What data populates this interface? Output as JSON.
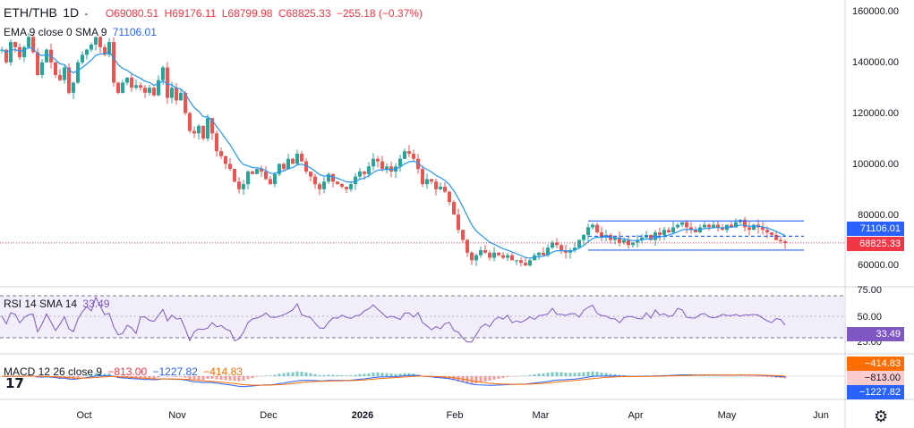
{
  "header": {
    "symbol": "ETH/THB",
    "interval": "1D",
    "dash": "-",
    "open": "O69080.51",
    "high": "H69176.11",
    "low": "L68799.98",
    "close": "C68825.33",
    "change": "−255.18 (−0.37%)"
  },
  "ema_legend": {
    "label": "EMA 9 close 0 SMA 9",
    "value": "71106.01"
  },
  "rsi_legend": {
    "label": "RSI 14 SMA 14",
    "value": "33.49"
  },
  "macd_legend": {
    "label": "MACD 12 26 close 9",
    "v1": "−813.00",
    "v2": "−1227.82",
    "v3": "−414.83"
  },
  "price_axis": {
    "ticks": [
      "160000.00",
      "140000.00",
      "120000.00",
      "100000.00",
      "80000.00",
      "60000.00"
    ],
    "ema_tag": "71106.01",
    "price_tag": "68825.33"
  },
  "rsi_axis": {
    "ticks": [
      "75.00",
      "50.00",
      "25.00"
    ],
    "tag": "33.49"
  },
  "macd_axis": {
    "tags": [
      "−414.83",
      "−813.00",
      "−1227.82"
    ]
  },
  "time_axis": [
    "Oct",
    "Nov",
    "Dec",
    "2026",
    "Feb",
    "Mar",
    "Apr",
    "May",
    "Jun"
  ],
  "colors": {
    "up": "#26a69a",
    "down": "#ef5350",
    "ema": "#2196f3",
    "rsi": "#7e57c2",
    "macd": "#2962ff",
    "signal": "#ff6d00",
    "price_tag": "#f23645",
    "ema_tag": "#2962ff"
  },
  "chart_data": {
    "type": "candlestick",
    "ylim": [
      55000,
      165000
    ],
    "close_path": [
      [
        0,
        145000
      ],
      [
        5,
        140000
      ],
      [
        10,
        148000
      ],
      [
        15,
        146000
      ],
      [
        20,
        142000
      ],
      [
        25,
        146000
      ],
      [
        30,
        150000
      ],
      [
        35,
        144000
      ],
      [
        40,
        135000
      ],
      [
        45,
        140000
      ],
      [
        50,
        145000
      ],
      [
        55,
        140000
      ],
      [
        60,
        135000
      ],
      [
        65,
        133000
      ],
      [
        70,
        138000
      ],
      [
        75,
        128000
      ],
      [
        80,
        132000
      ],
      [
        85,
        140000
      ],
      [
        90,
        143000
      ],
      [
        95,
        145000
      ],
      [
        100,
        147000
      ],
      [
        105,
        150000
      ],
      [
        110,
        146000
      ],
      [
        115,
        143000
      ],
      [
        120,
        148000
      ],
      [
        125,
        132000
      ],
      [
        130,
        128000
      ],
      [
        135,
        132000
      ],
      [
        140,
        134000
      ],
      [
        145,
        130000
      ],
      [
        150,
        131000
      ],
      [
        155,
        130000
      ],
      [
        160,
        128000
      ],
      [
        165,
        130000
      ],
      [
        170,
        127000
      ],
      [
        175,
        133000
      ],
      [
        180,
        138000
      ],
      [
        185,
        126000
      ],
      [
        190,
        130000
      ],
      [
        195,
        125000
      ],
      [
        200,
        128000
      ],
      [
        205,
        120000
      ],
      [
        210,
        113000
      ],
      [
        215,
        112000
      ],
      [
        220,
        115000
      ],
      [
        225,
        110000
      ],
      [
        230,
        118000
      ],
      [
        235,
        112000
      ],
      [
        240,
        105000
      ],
      [
        245,
        103000
      ],
      [
        250,
        100000
      ],
      [
        255,
        98000
      ],
      [
        260,
        93000
      ],
      [
        265,
        90000
      ],
      [
        270,
        92000
      ],
      [
        275,
        97000
      ],
      [
        280,
        96000
      ],
      [
        285,
        98000
      ],
      [
        290,
        97000
      ],
      [
        295,
        94000
      ],
      [
        300,
        92000
      ],
      [
        305,
        96000
      ],
      [
        310,
        100000
      ],
      [
        315,
        98000
      ],
      [
        320,
        102000
      ],
      [
        325,
        100000
      ],
      [
        330,
        104000
      ],
      [
        335,
        101000
      ],
      [
        340,
        97000
      ],
      [
        345,
        95000
      ],
      [
        350,
        92000
      ],
      [
        355,
        90000
      ],
      [
        360,
        93000
      ],
      [
        365,
        96000
      ],
      [
        370,
        93000
      ],
      [
        375,
        92000
      ],
      [
        380,
        91000
      ],
      [
        385,
        90000
      ],
      [
        390,
        92000
      ],
      [
        395,
        95000
      ],
      [
        400,
        97000
      ],
      [
        405,
        96000
      ],
      [
        410,
        99000
      ],
      [
        415,
        102000
      ],
      [
        420,
        101000
      ],
      [
        425,
        98000
      ],
      [
        430,
        99000
      ],
      [
        435,
        97000
      ],
      [
        440,
        99000
      ],
      [
        445,
        102000
      ],
      [
        450,
        105000
      ],
      [
        455,
        104000
      ],
      [
        460,
        102000
      ],
      [
        465,
        98000
      ],
      [
        470,
        92000
      ],
      [
        475,
        94000
      ],
      [
        480,
        93000
      ],
      [
        485,
        90000
      ],
      [
        490,
        91000
      ],
      [
        495,
        89000
      ],
      [
        500,
        85000
      ],
      [
        505,
        80000
      ],
      [
        510,
        74000
      ],
      [
        515,
        70000
      ],
      [
        520,
        65000
      ],
      [
        525,
        62000
      ],
      [
        530,
        64000
      ],
      [
        535,
        66000
      ],
      [
        540,
        65000
      ],
      [
        545,
        63000
      ],
      [
        550,
        65000
      ],
      [
        555,
        64000
      ],
      [
        560,
        63000
      ],
      [
        565,
        64000
      ],
      [
        570,
        62000
      ],
      [
        575,
        62000
      ],
      [
        580,
        61000
      ],
      [
        585,
        60000
      ],
      [
        590,
        62000
      ],
      [
        595,
        64000
      ],
      [
        600,
        65000
      ],
      [
        605,
        64000
      ],
      [
        610,
        67000
      ],
      [
        615,
        69000
      ],
      [
        620,
        68000
      ],
      [
        625,
        66000
      ],
      [
        630,
        65000
      ],
      [
        635,
        66000
      ],
      [
        640,
        67000
      ],
      [
        645,
        70000
      ],
      [
        650,
        72000
      ],
      [
        655,
        75000
      ],
      [
        660,
        76000
      ],
      [
        665,
        73000
      ],
      [
        670,
        71000
      ],
      [
        675,
        72000
      ],
      [
        680,
        70000
      ],
      [
        685,
        71000
      ],
      [
        690,
        69000
      ],
      [
        695,
        70000
      ],
      [
        700,
        68000
      ],
      [
        705,
        69000
      ],
      [
        710,
        70000
      ],
      [
        715,
        71000
      ],
      [
        720,
        72000
      ],
      [
        725,
        70000
      ],
      [
        730,
        73000
      ],
      [
        735,
        72000
      ],
      [
        740,
        74000
      ],
      [
        745,
        73000
      ],
      [
        750,
        75000
      ],
      [
        755,
        76000
      ],
      [
        760,
        77000
      ],
      [
        765,
        75000
      ],
      [
        770,
        74000
      ],
      [
        775,
        73000
      ],
      [
        780,
        75000
      ],
      [
        785,
        76000
      ],
      [
        790,
        75000
      ],
      [
        795,
        76000
      ],
      [
        800,
        75000
      ],
      [
        805,
        74000
      ],
      [
        810,
        76000
      ],
      [
        815,
        75000
      ],
      [
        820,
        77000
      ],
      [
        825,
        78000
      ],
      [
        830,
        75000
      ],
      [
        835,
        74000
      ],
      [
        840,
        76000
      ],
      [
        845,
        75000
      ],
      [
        850,
        74000
      ],
      [
        855,
        73000
      ],
      [
        860,
        72000
      ],
      [
        865,
        70000
      ],
      [
        870,
        69500
      ],
      [
        875,
        68825
      ]
    ],
    "channel": {
      "upper": 77500,
      "lower": 66000,
      "mid": 71500
    },
    "rsi_ylim": [
      15,
      80
    ]
  }
}
